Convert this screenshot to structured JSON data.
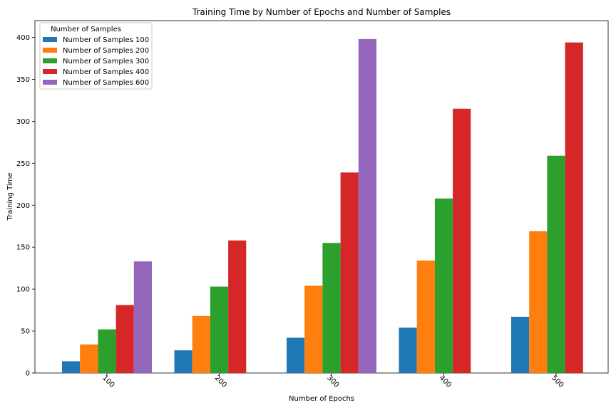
{
  "chart_data": {
    "type": "bar",
    "title": "Training Time by Number of Epochs and Number of Samples",
    "xlabel": "Number of Epochs",
    "ylabel": "Training Time",
    "categories": [
      "100",
      "200",
      "300",
      "400",
      "500"
    ],
    "ylim": [
      0,
      420
    ],
    "yticks": [
      0,
      50,
      100,
      150,
      200,
      250,
      300,
      350,
      400
    ],
    "legend_title": "Number of Samples",
    "legend_position": "top-left",
    "grid": false,
    "series": [
      {
        "name": "Number of Samples 100",
        "color": "#1f77b4",
        "values": [
          14,
          27,
          42,
          54,
          67
        ]
      },
      {
        "name": "Number of Samples 200",
        "color": "#ff7f0e",
        "values": [
          34,
          68,
          104,
          134,
          169
        ]
      },
      {
        "name": "Number of Samples 300",
        "color": "#2ca02c",
        "values": [
          52,
          103,
          155,
          208,
          259
        ]
      },
      {
        "name": "Number of Samples 400",
        "color": "#d62728",
        "values": [
          81,
          158,
          239,
          315,
          394
        ]
      },
      {
        "name": "Number of Samples 600",
        "color": "#9467bd",
        "values": [
          133,
          null,
          398,
          null,
          null
        ]
      }
    ]
  }
}
